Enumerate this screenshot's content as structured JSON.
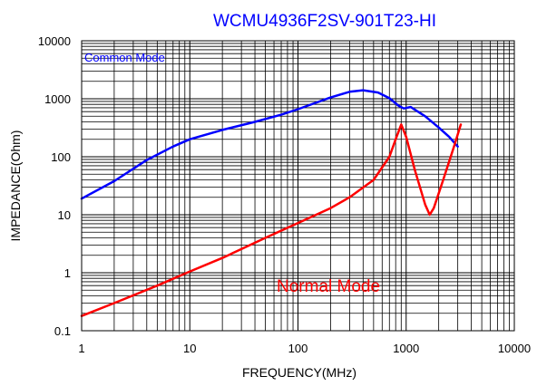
{
  "chart_data": {
    "type": "line",
    "title": "WCMU4936F2SV-901T23-HI",
    "xlabel": "FREQUENCY(MHz)",
    "ylabel": "IMPEDANCE(Ohm)",
    "x_scale": "log",
    "y_scale": "log",
    "xlim": [
      1,
      10000
    ],
    "ylim": [
      0.1,
      10000
    ],
    "x_ticks": [
      1,
      10,
      100,
      1000,
      10000
    ],
    "x_tick_labels": [
      "1",
      "10",
      "100",
      "1000",
      "10000"
    ],
    "y_ticks": [
      0.1,
      1,
      10,
      100,
      1000,
      10000
    ],
    "y_tick_labels": [
      "0.1",
      "1",
      "10",
      "100",
      "1000",
      "10000"
    ],
    "grid": true,
    "series": [
      {
        "name": "Common Mode",
        "color": "#0000ff",
        "x": [
          1,
          2,
          4,
          7,
          10,
          20,
          40,
          70,
          100,
          200,
          300,
          400,
          550,
          700,
          850,
          950,
          1100,
          1500,
          2000,
          2500,
          3000
        ],
        "y": [
          19,
          38,
          88,
          150,
          200,
          290,
          400,
          530,
          660,
          1050,
          1320,
          1400,
          1280,
          1020,
          760,
          680,
          720,
          500,
          320,
          220,
          150
        ]
      },
      {
        "name": "Normal Mode",
        "color": "#ff0000",
        "x": [
          1,
          2,
          5,
          10,
          20,
          50,
          100,
          200,
          300,
          500,
          700,
          800,
          900,
          1000,
          1200,
          1500,
          1650,
          1800,
          2200,
          2800,
          3200
        ],
        "y": [
          0.18,
          0.3,
          0.6,
          1.05,
          1.8,
          4,
          7.2,
          13,
          20,
          40,
          100,
          200,
          360,
          220,
          60,
          15,
          10,
          13,
          40,
          160,
          360
        ]
      }
    ]
  }
}
